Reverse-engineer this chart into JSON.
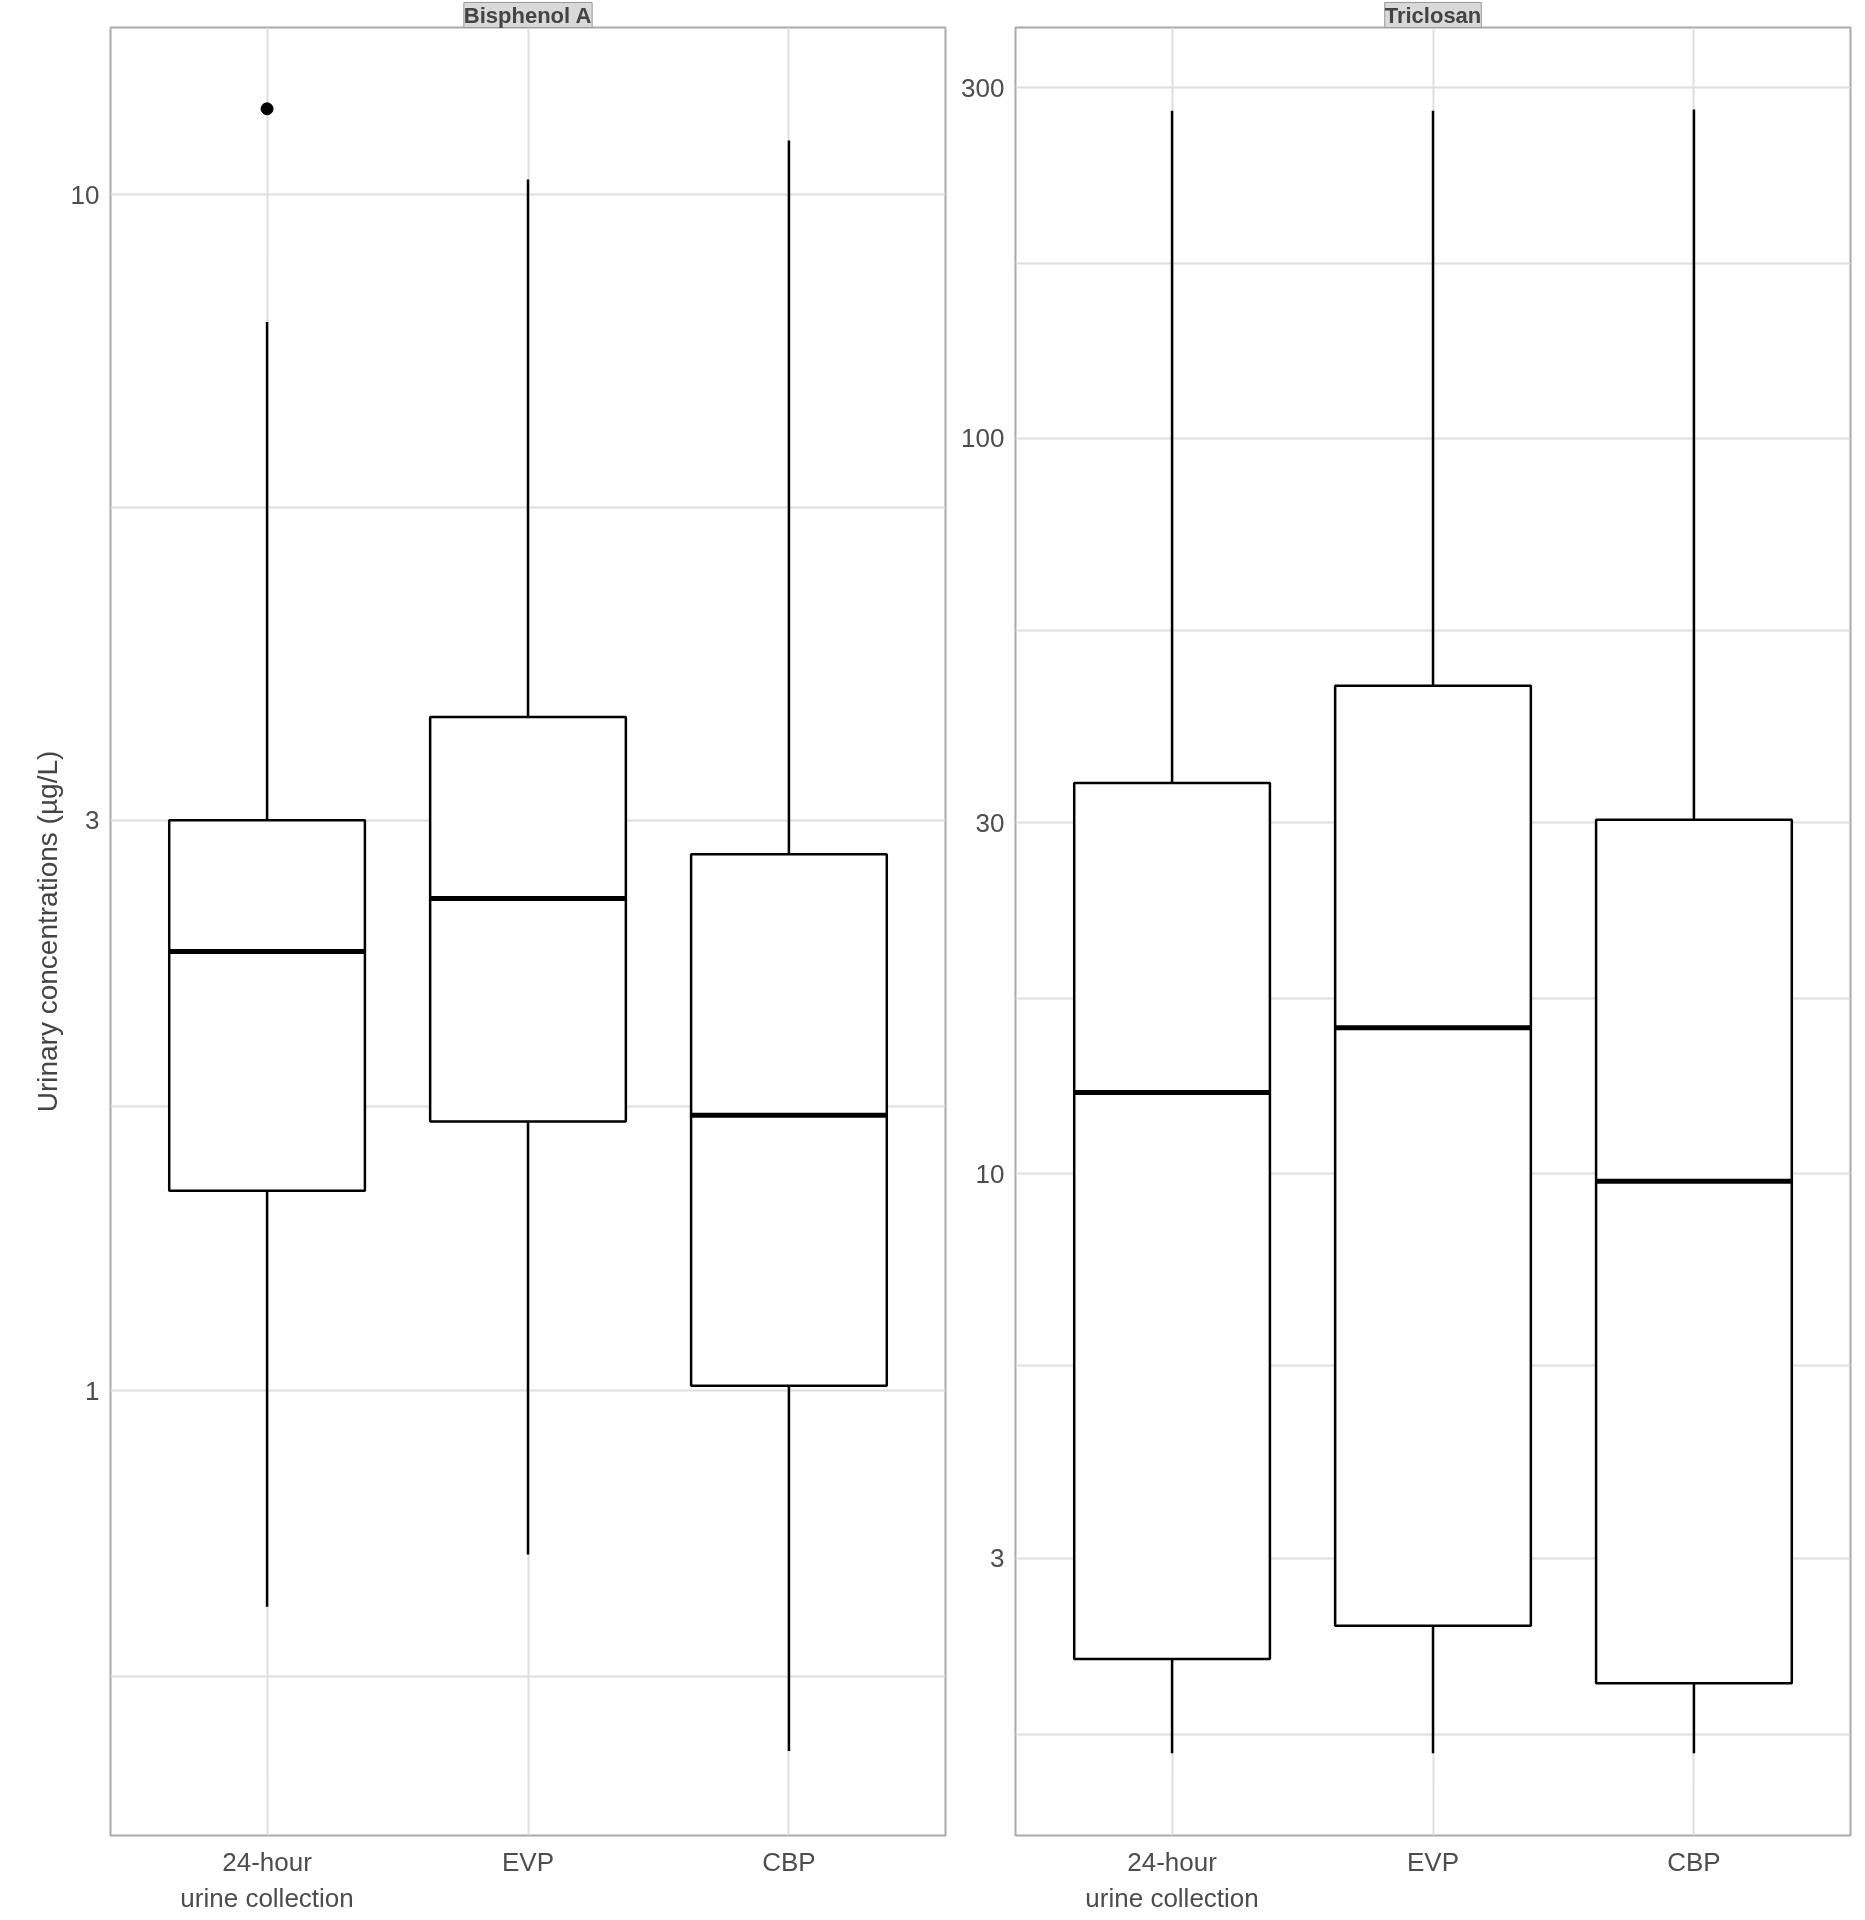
{
  "chart_data": [
    {
      "type": "box",
      "title": "Bisphenol A",
      "ylabel": "Urinary concentrations (µg/L)",
      "categories": [
        "24-hour\nurine collection",
        "EVP",
        "CBP"
      ],
      "log": true,
      "grid": true,
      "ylim": [
        0.425,
        13.8
      ],
      "yticks": [
        {
          "value": 0.577,
          "label": null
        },
        1,
        {
          "value": 1.73,
          "label": null
        },
        3,
        {
          "value": 5.48,
          "label": null
        },
        10
      ],
      "color": "#000000",
      "boxes": [
        {
          "low": 0.66,
          "q1": 1.47,
          "median": 2.33,
          "q3": 3.0,
          "high": 7.83,
          "outliers": [
            11.8
          ]
        },
        {
          "low": 0.73,
          "q1": 1.68,
          "median": 2.58,
          "q3": 3.66,
          "high": 10.3
        },
        {
          "low": 0.5,
          "q1": 1.01,
          "median": 1.7,
          "q3": 2.81,
          "high": 11.1
        }
      ]
    },
    {
      "type": "box",
      "title": "Triclosan",
      "categories": [
        "24-hour\nurine collection",
        "EVP",
        "CBP"
      ],
      "log": true,
      "grid": true,
      "ylim": [
        1.26,
        362
      ],
      "yticks": [
        {
          "value": 1.73,
          "label": null
        },
        3,
        {
          "value": 5.48,
          "label": null
        },
        10,
        {
          "value": 17.3,
          "label": null
        },
        30,
        {
          "value": 54.8,
          "label": null
        },
        100,
        {
          "value": 173,
          "label": null
        },
        300
      ],
      "color": "#000000",
      "boxes": [
        {
          "low": 1.63,
          "q1": 2.19,
          "median": 12.9,
          "q3": 34.0,
          "high": 279
        },
        {
          "low": 1.63,
          "q1": 2.43,
          "median": 15.8,
          "q3": 46.1,
          "high": 279
        },
        {
          "low": 1.63,
          "q1": 2.03,
          "median": 9.77,
          "q3": 30.3,
          "high": 280
        }
      ]
    }
  ]
}
